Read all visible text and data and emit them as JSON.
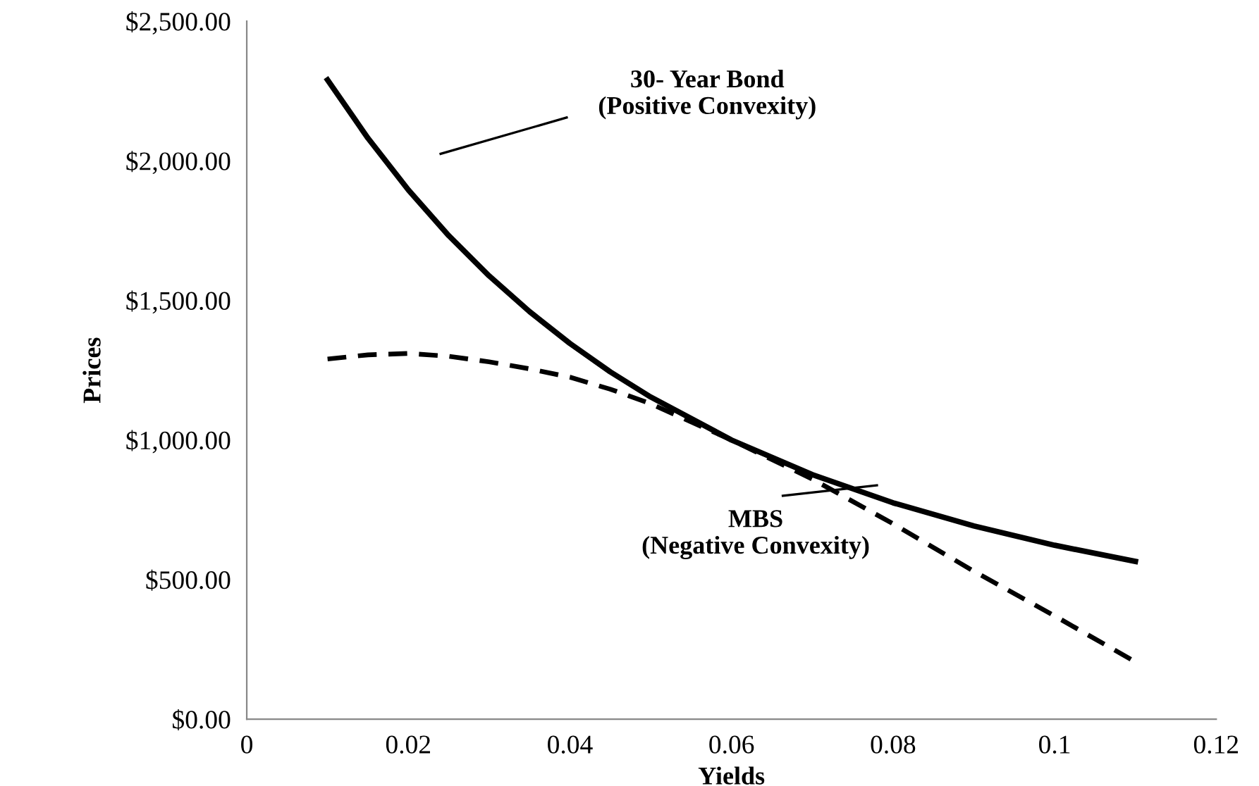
{
  "chart_data": {
    "type": "line",
    "xlabel": "Yields",
    "ylabel": "Prices",
    "x": [
      0.01,
      0.015,
      0.02,
      0.025,
      0.03,
      0.035,
      0.04,
      0.045,
      0.05,
      0.06,
      0.07,
      0.08,
      0.09,
      0.1,
      0.11
    ],
    "series": [
      {
        "color": "#000000",
        "line_style": "solid",
        "values": [
          2290,
          2081,
          1896,
          1732,
          1588,
          1460,
          1346,
          1244,
          1154,
          1000,
          876,
          775,
          692,
          623,
          565
        ]
      },
      {
        "color": "#000000",
        "line_style": "dashed",
        "values": [
          1290,
          1305,
          1310,
          1300,
          1280,
          1255,
          1225,
          1182,
          1130,
          1000,
          860,
          700,
          530,
          370,
          205
        ]
      }
    ],
    "xlim": [
      0,
      0.12
    ],
    "xticks": [
      {
        "value": 0,
        "label": "0"
      },
      0.02,
      0.04,
      0.06,
      0.08,
      0.1,
      0.12
    ],
    "ylim": [
      0,
      2500
    ],
    "yticks": [
      {
        "value": 0,
        "label": "$0.00"
      },
      {
        "value": 500,
        "label": "$500.00"
      },
      {
        "value": 1000,
        "label": "$1,000.00"
      },
      {
        "value": 1500,
        "label": "$1,500.00"
      },
      {
        "value": 2000,
        "label": "$2,000.00"
      },
      {
        "value": 2500,
        "label": "$2,500.00"
      }
    ],
    "annotations": [
      "30- Year Bond\n(Positive Convexity)",
      "MBS\n(Negative Convexity)"
    ],
    "grid": false,
    "marker": "none"
  }
}
